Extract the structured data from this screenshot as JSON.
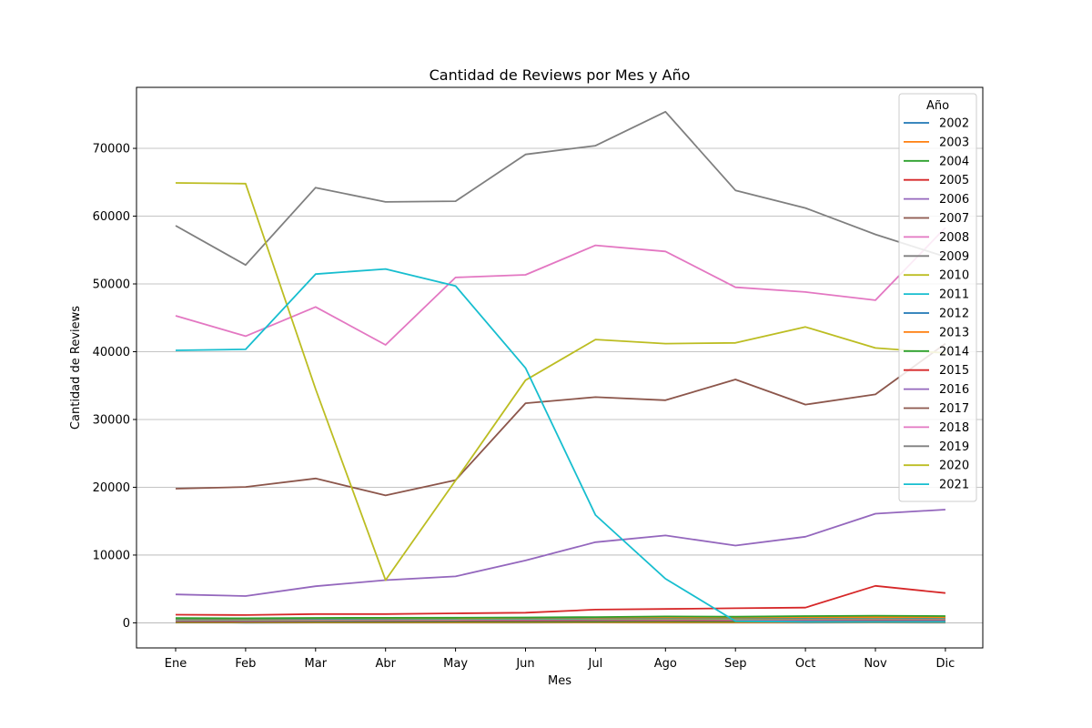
{
  "chart_data": {
    "type": "line",
    "title": "Cantidad de Reviews por Mes y Año",
    "xlabel": "Mes",
    "ylabel": "Cantidad de Reviews",
    "categories": [
      "Ene",
      "Feb",
      "Mar",
      "Abr",
      "May",
      "Jun",
      "Jul",
      "Ago",
      "Sep",
      "Oct",
      "Nov",
      "Dic"
    ],
    "ylim": [
      -3700,
      79000
    ],
    "yticks": [
      0,
      10000,
      20000,
      30000,
      40000,
      50000,
      60000,
      70000
    ],
    "grid": "y",
    "legend": {
      "title": "Año",
      "placement": "top-right"
    },
    "series": [
      {
        "name": "2002",
        "color": "#1f77b4",
        "values": [
          30,
          25,
          30,
          35,
          30,
          35,
          40,
          35,
          30,
          35,
          40,
          35
        ]
      },
      {
        "name": "2003",
        "color": "#ff7f0e",
        "values": [
          60,
          55,
          60,
          60,
          65,
          70,
          70,
          65,
          60,
          70,
          75,
          70
        ]
      },
      {
        "name": "2004",
        "color": "#2ca02c",
        "values": [
          150,
          140,
          160,
          170,
          180,
          190,
          200,
          210,
          200,
          220,
          230,
          230
        ]
      },
      {
        "name": "2005",
        "color": "#d62728",
        "values": [
          250,
          240,
          270,
          280,
          300,
          320,
          340,
          350,
          330,
          360,
          380,
          370
        ]
      },
      {
        "name": "2006",
        "color": "#9467bd",
        "values": [
          300,
          290,
          320,
          330,
          350,
          380,
          400,
          420,
          400,
          430,
          450,
          440
        ]
      },
      {
        "name": "2007",
        "color": "#8c564b",
        "values": [
          350,
          340,
          370,
          380,
          400,
          420,
          440,
          460,
          450,
          470,
          490,
          480
        ]
      },
      {
        "name": "2008",
        "color": "#e377c2",
        "values": [
          400,
          390,
          420,
          430,
          450,
          480,
          500,
          520,
          500,
          530,
          550,
          540
        ]
      },
      {
        "name": "2009",
        "color": "#7f7f7f",
        "values": [
          450,
          440,
          480,
          490,
          510,
          540,
          560,
          580,
          570,
          600,
          620,
          610
        ]
      },
      {
        "name": "2010",
        "color": "#bcbd22",
        "values": [
          500,
          490,
          530,
          540,
          560,
          600,
          620,
          640,
          620,
          660,
          680,
          670
        ]
      },
      {
        "name": "2011",
        "color": "#17becf",
        "values": [
          550,
          540,
          580,
          600,
          620,
          650,
          680,
          700,
          690,
          720,
          740,
          730
        ]
      },
      {
        "name": "2012",
        "color": "#1f77b4",
        "values": [
          600,
          580,
          620,
          640,
          660,
          700,
          720,
          740,
          730,
          760,
          780,
          770
        ]
      },
      {
        "name": "2013",
        "color": "#ff7f0e",
        "values": [
          650,
          630,
          680,
          690,
          710,
          750,
          770,
          800,
          780,
          820,
          840,
          830
        ]
      },
      {
        "name": "2014",
        "color": "#2ca02c",
        "values": [
          700,
          680,
          730,
          740,
          760,
          800,
          850,
          950,
          900,
          1000,
          1050,
          1000
        ]
      },
      {
        "name": "2015",
        "color": "#d62728",
        "values": [
          1200,
          1150,
          1300,
          1300,
          1400,
          1500,
          1950,
          2050,
          2150,
          2250,
          5450,
          4400
        ]
      },
      {
        "name": "2016",
        "color": "#9467bd",
        "values": [
          4200,
          3950,
          5400,
          6300,
          6850,
          9200,
          11900,
          12900,
          11400,
          12700,
          16100,
          16700
        ]
      },
      {
        "name": "2017",
        "color": "#8c564b",
        "values": [
          19800,
          20050,
          21300,
          18800,
          21050,
          32400,
          33300,
          32850,
          35900,
          32200,
          33700,
          41200
        ]
      },
      {
        "name": "2018",
        "color": "#e377c2",
        "values": [
          45300,
          42300,
          46600,
          41000,
          50950,
          51350,
          55700,
          54800,
          49500,
          48800,
          47600,
          58300
        ]
      },
      {
        "name": "2019",
        "color": "#7f7f7f",
        "values": [
          58600,
          52800,
          64200,
          62100,
          62200,
          69100,
          70400,
          75400,
          63800,
          61200,
          57300,
          54000
        ]
      },
      {
        "name": "2020",
        "color": "#bcbd22",
        "values": [
          64900,
          64800,
          34500,
          6300,
          21000,
          35800,
          41800,
          41200,
          41300,
          43650,
          40550,
          39800
        ]
      },
      {
        "name": "2021",
        "color": "#17becf",
        "values": [
          40200,
          40350,
          51450,
          52200,
          49700,
          37600,
          15900,
          6500,
          250,
          150,
          150,
          150
        ]
      }
    ]
  }
}
